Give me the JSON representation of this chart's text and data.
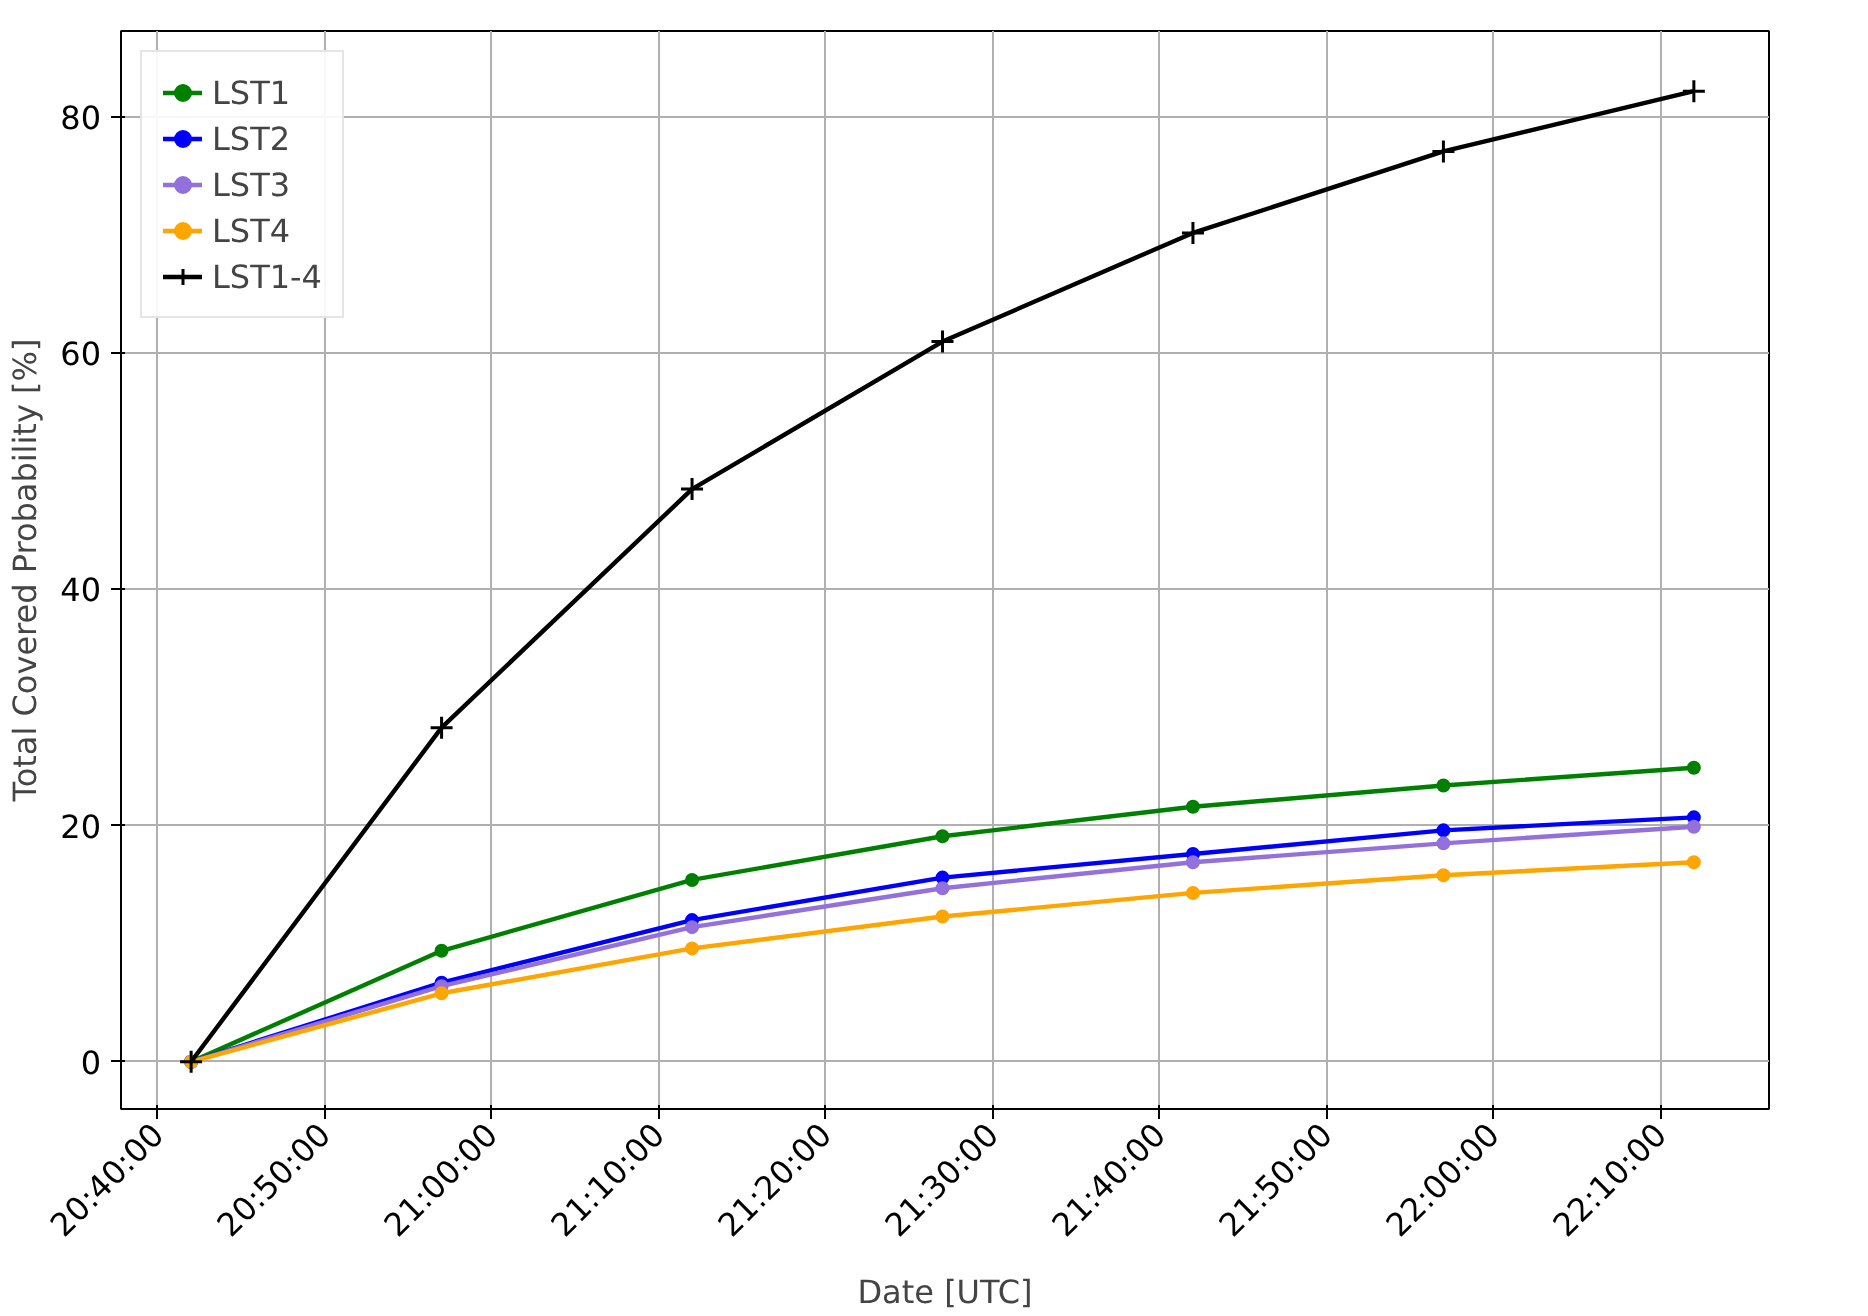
{
  "chart_data": {
    "type": "line",
    "xlabel": "Date [UTC]",
    "ylabel": "Total Covered Probability [%]",
    "x": [
      20.7,
      20.95,
      21.2,
      21.45,
      21.7,
      21.95,
      22.2
    ],
    "series": [
      {
        "name": "LST1",
        "color": "#008000",
        "marker": "circle",
        "values": [
          0,
          9.4,
          15.4,
          19.1,
          21.6,
          23.4,
          24.9
        ]
      },
      {
        "name": "LST2",
        "color": "#0000ff",
        "marker": "circle",
        "values": [
          0,
          6.7,
          12.0,
          15.6,
          17.6,
          19.6,
          20.7
        ]
      },
      {
        "name": "LST3",
        "color": "#9370db",
        "marker": "circle",
        "values": [
          0,
          6.4,
          11.4,
          14.7,
          16.9,
          18.5,
          19.9
        ]
      },
      {
        "name": "LST4",
        "color": "#ffa500",
        "marker": "circle",
        "values": [
          0,
          5.8,
          9.6,
          12.3,
          14.3,
          15.8,
          16.9
        ]
      },
      {
        "name": "LST1-4",
        "color": "#000000",
        "marker": "cross",
        "values": [
          0,
          28.3,
          48.5,
          61,
          70.2,
          77.1,
          82.2
        ]
      }
    ],
    "xlim": [
      20.63,
      22.275
    ],
    "ylim": [
      -4,
      87.3
    ],
    "xticks": [
      {
        "value": 20.6667,
        "label": "20:40:00"
      },
      {
        "value": 20.8333,
        "label": "20:50:00"
      },
      {
        "value": 21.0,
        "label": "21:00:00"
      },
      {
        "value": 21.1667,
        "label": "21:10:00"
      },
      {
        "value": 21.3333,
        "label": "21:20:00"
      },
      {
        "value": 21.5,
        "label": "21:30:00"
      },
      {
        "value": 21.6667,
        "label": "21:40:00"
      },
      {
        "value": 21.8333,
        "label": "21:50:00"
      },
      {
        "value": 22.0,
        "label": "22:00:00"
      },
      {
        "value": 22.1667,
        "label": "22:10:00"
      }
    ],
    "yticks": [
      0,
      20,
      40,
      60,
      80
    ],
    "grid": true,
    "legend": "top left",
    "line_style": "solid"
  }
}
